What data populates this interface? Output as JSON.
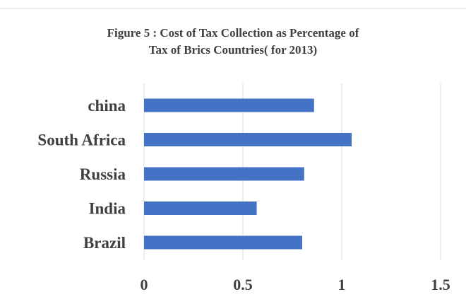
{
  "chart_data": {
    "type": "bar",
    "orientation": "horizontal",
    "title_lines": [
      "Figure 5 : Cost of Tax Collection as Percentage of",
      "Tax of Brics Countries( for 2013)"
    ],
    "categories": [
      "china",
      "South Africa",
      "Russia",
      "India",
      "Brazil"
    ],
    "values": [
      0.86,
      1.05,
      0.81,
      0.57,
      0.8
    ],
    "xticks": [
      "0",
      "0.5",
      "1",
      "1.5"
    ],
    "xlim": [
      0,
      1.5
    ],
    "grid": "vertical",
    "legend": "none",
    "bar_color": "#4472C4",
    "grid_color": "#d9d9d9"
  }
}
